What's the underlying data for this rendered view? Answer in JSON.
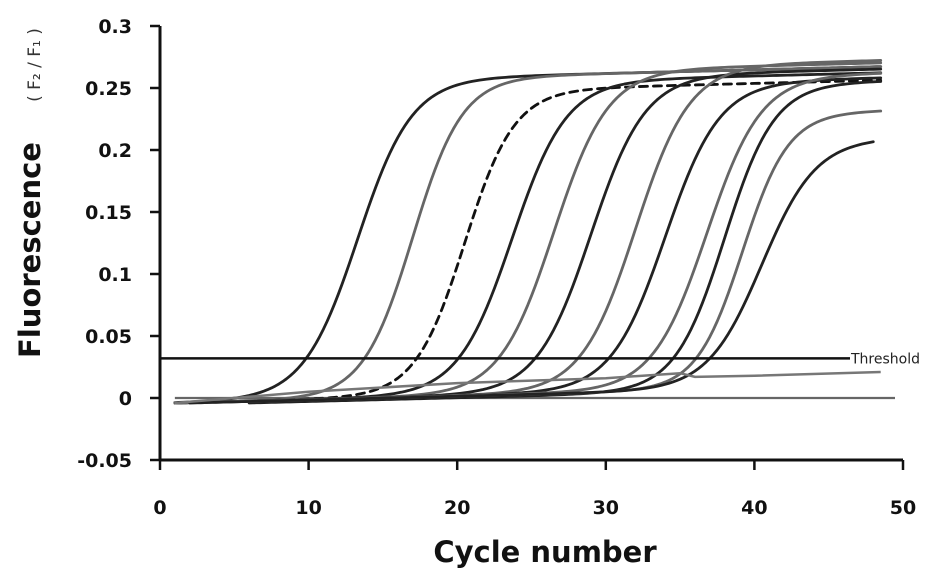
{
  "chart_data": {
    "type": "line",
    "title": "",
    "xlabel": "Cycle number",
    "ylabel": "Fluorescence",
    "ylabel_unit": "( F₂  /  F₁ )",
    "xlim": [
      0,
      50
    ],
    "ylim": [
      -0.05,
      0.3
    ],
    "x_ticks": [
      "0",
      "10",
      "20",
      "30",
      "40",
      "50"
    ],
    "y_ticks": [
      "-0.05",
      "0",
      "0.05",
      "0.1",
      "0.15",
      "0.2",
      "0.25",
      "0.3"
    ],
    "grid": false,
    "legend": "none",
    "threshold": {
      "label": "Threshold",
      "value": 0.032
    },
    "baseline": {
      "value": 0,
      "x_range": [
        1,
        50
      ]
    },
    "series": [
      {
        "midpoint": 13.3,
        "steepness": 0.55,
        "plateau": 0.257,
        "start": 1,
        "end": 48.5,
        "color": "#222222",
        "dashed": false
      },
      {
        "midpoint": 17.0,
        "steepness": 0.6,
        "plateau": 0.257,
        "start": 1,
        "end": 48.5,
        "color": "#666666",
        "dashed": false
      },
      {
        "midpoint": 20.5,
        "steepness": 0.6,
        "plateau": 0.246,
        "start": 1,
        "end": 48.5,
        "color": "#111111",
        "dashed": true
      },
      {
        "midpoint": 23.7,
        "steepness": 0.55,
        "plateau": 0.252,
        "start": 1,
        "end": 48.5,
        "color": "#222222",
        "dashed": false
      },
      {
        "midpoint": 26.5,
        "steepness": 0.55,
        "plateau": 0.26,
        "start": 1,
        "end": 48.5,
        "color": "#666666",
        "dashed": false
      },
      {
        "midpoint": 29.0,
        "steepness": 0.55,
        "plateau": 0.255,
        "start": 1,
        "end": 48.5,
        "color": "#222222",
        "dashed": false
      },
      {
        "midpoint": 32.0,
        "steepness": 0.55,
        "plateau": 0.262,
        "start": 1,
        "end": 48.5,
        "color": "#666666",
        "dashed": false
      },
      {
        "midpoint": 34.0,
        "steepness": 0.55,
        "plateau": 0.248,
        "start": 1,
        "end": 48.5,
        "color": "#222222",
        "dashed": false
      },
      {
        "midpoint": 36.8,
        "steepness": 0.55,
        "plateau": 0.252,
        "start": 1,
        "end": 48.5,
        "color": "#666666",
        "dashed": false
      },
      {
        "midpoint": 38.0,
        "steepness": 0.6,
        "plateau": 0.247,
        "start": 6,
        "end": 48.5,
        "color": "#222222",
        "dashed": false
      },
      {
        "midpoint": 39.2,
        "steepness": 0.65,
        "plateau": 0.222,
        "start": 2,
        "end": 48.5,
        "color": "#666666",
        "dashed": false
      },
      {
        "midpoint": 40.5,
        "steepness": 0.55,
        "plateau": 0.2,
        "start": 2,
        "end": 48.0,
        "color": "#222222",
        "dashed": false
      }
    ],
    "negative_control": {
      "color": "#777777",
      "points": [
        [
          1,
          -0.004
        ],
        [
          10,
          0.005
        ],
        [
          20,
          0.012
        ],
        [
          30,
          0.016
        ],
        [
          35,
          0.02
        ],
        [
          36,
          0.017
        ],
        [
          40,
          0.018
        ],
        [
          48.5,
          0.021
        ]
      ]
    }
  }
}
